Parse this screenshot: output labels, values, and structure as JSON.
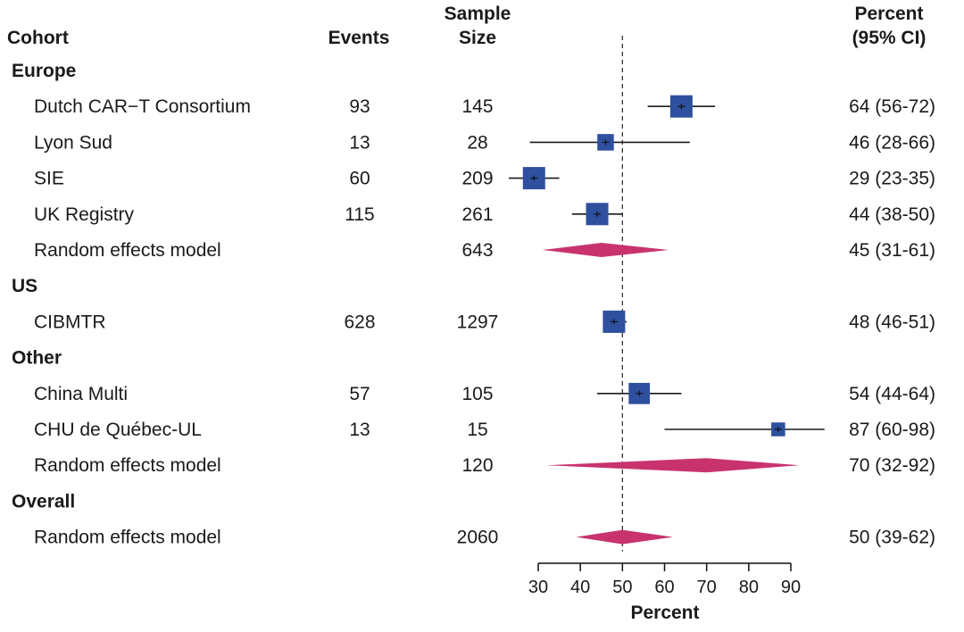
{
  "chart_data": {
    "type": "forest",
    "headers": {
      "cohort": "Cohort",
      "events": "Events",
      "sample_size": [
        "Sample",
        "Size"
      ],
      "percent": [
        "Percent",
        "(95% CI)"
      ]
    },
    "xlabel": "Percent",
    "xticks": [
      30,
      40,
      50,
      60,
      70,
      80,
      90
    ],
    "xlim": [
      30,
      90
    ],
    "reference_line": 50,
    "colors": {
      "study": "#2f4f9f",
      "summary": "#c8336e",
      "line": "#1a1a1a"
    },
    "rows": [
      {
        "kind": "group",
        "label": "Europe"
      },
      {
        "kind": "study",
        "label": "Dutch CAR−T Consortium",
        "events": "93",
        "n": "145",
        "ci_text": "64 (56-72)",
        "est": 64,
        "lo": 56,
        "hi": 72,
        "weight": 1.0
      },
      {
        "kind": "study",
        "label": "Lyon Sud",
        "events": "13",
        "n": "28",
        "ci_text": "46 (28-66)",
        "est": 46,
        "lo": 28,
        "hi": 66,
        "weight": 0.74
      },
      {
        "kind": "study",
        "label": "SIE",
        "events": "60",
        "n": "209",
        "ci_text": "29 (23-35)",
        "est": 29,
        "lo": 23,
        "hi": 35,
        "weight": 1.0
      },
      {
        "kind": "study",
        "label": "UK Registry",
        "events": "115",
        "n": "261",
        "ci_text": "44 (38-50)",
        "est": 44,
        "lo": 38,
        "hi": 50,
        "weight": 1.0
      },
      {
        "kind": "summary",
        "label": "Random effects model",
        "n": "643",
        "ci_text": "45 (31-61)",
        "est": 45,
        "lo": 31,
        "hi": 61
      },
      {
        "kind": "group",
        "label": "US"
      },
      {
        "kind": "study",
        "label": "CIBMTR",
        "events": "628",
        "n": "1297",
        "ci_text": "48 (46-51)",
        "est": 48,
        "lo": 46,
        "hi": 51,
        "weight": 1.0
      },
      {
        "kind": "group",
        "label": "Other"
      },
      {
        "kind": "study",
        "label": "China Multi",
        "events": "57",
        "n": "105",
        "ci_text": "54 (44-64)",
        "est": 54,
        "lo": 44,
        "hi": 64,
        "weight": 0.95
      },
      {
        "kind": "study",
        "label": "CHU de Québec-UL",
        "events": "13",
        "n": "15",
        "ci_text": "87 (60-98)",
        "est": 87,
        "lo": 60,
        "hi": 98,
        "weight": 0.62
      },
      {
        "kind": "summary",
        "label": "Random effects model",
        "n": "120",
        "ci_text": "70 (32-92)",
        "est": 70,
        "lo": 32,
        "hi": 92
      },
      {
        "kind": "group",
        "label": "Overall"
      },
      {
        "kind": "summary",
        "label": "Random effects model",
        "n": "2060",
        "ci_text": "50 (39-62)",
        "est": 50,
        "lo": 39,
        "hi": 62
      }
    ]
  }
}
